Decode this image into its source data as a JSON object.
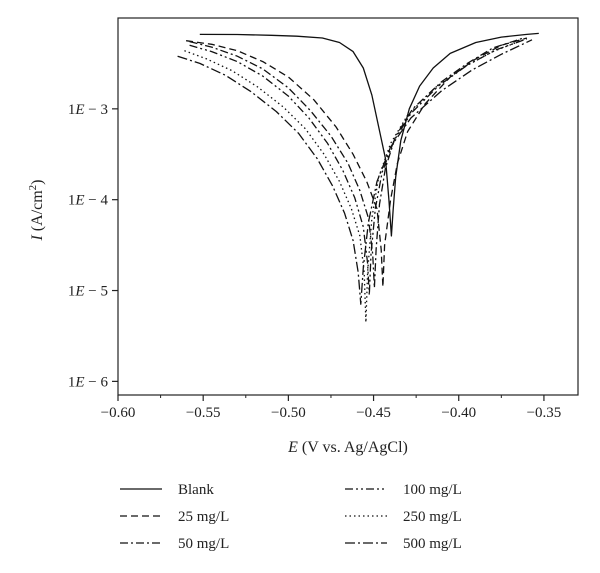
{
  "chart_data": {
    "type": "line",
    "title": "",
    "xlabel": "E (V vs. Ag/AgCl)",
    "ylabel": "I (A/cm2)",
    "xlim": [
      -0.6,
      -0.33
    ],
    "ylim_log10": [
      -6.15,
      -2.0
    ],
    "yscale": "log",
    "x_ticks": [
      -0.6,
      -0.55,
      -0.5,
      -0.45,
      -0.4,
      -0.35
    ],
    "x_tick_labels": [
      "−0.60",
      "−0.55",
      "−0.50",
      "−0.45",
      "−0.40",
      "−0.35"
    ],
    "y_ticks_log10": [
      -6,
      -5,
      -4,
      -3
    ],
    "y_tick_labels": [
      "1E − 6",
      "1E − 5",
      "1E − 4",
      "1E − 3"
    ],
    "grid": false,
    "legend_position": "bottom",
    "series": [
      {
        "name": "Blank",
        "dash": "",
        "points": [
          [
            -0.552,
            -2.18
          ],
          [
            -0.53,
            -2.182
          ],
          [
            -0.51,
            -2.19
          ],
          [
            -0.495,
            -2.2
          ],
          [
            -0.48,
            -2.22
          ],
          [
            -0.47,
            -2.27
          ],
          [
            -0.462,
            -2.37
          ],
          [
            -0.456,
            -2.55
          ],
          [
            -0.451,
            -2.85
          ],
          [
            -0.447,
            -3.2
          ],
          [
            -0.443,
            -3.55
          ],
          [
            -0.441,
            -4.0
          ],
          [
            -0.4395,
            -4.4
          ],
          [
            -0.4385,
            -4.12
          ],
          [
            -0.437,
            -3.75
          ],
          [
            -0.434,
            -3.35
          ],
          [
            -0.429,
            -3.0
          ],
          [
            -0.423,
            -2.75
          ],
          [
            -0.415,
            -2.55
          ],
          [
            -0.405,
            -2.39
          ],
          [
            -0.39,
            -2.27
          ],
          [
            -0.375,
            -2.21
          ],
          [
            -0.36,
            -2.18
          ],
          [
            -0.353,
            -2.17
          ]
        ]
      },
      {
        "name": "25 mg/L",
        "dash": "7,4",
        "points": [
          [
            -0.56,
            -2.25
          ],
          [
            -0.545,
            -2.29
          ],
          [
            -0.53,
            -2.36
          ],
          [
            -0.515,
            -2.48
          ],
          [
            -0.5,
            -2.65
          ],
          [
            -0.485,
            -2.9
          ],
          [
            -0.472,
            -3.2
          ],
          [
            -0.462,
            -3.5
          ],
          [
            -0.454,
            -3.8
          ],
          [
            -0.448,
            -4.1
          ],
          [
            -0.4455,
            -4.55
          ],
          [
            -0.4445,
            -4.96
          ],
          [
            -0.4435,
            -4.5
          ],
          [
            -0.44,
            -4.0
          ],
          [
            -0.436,
            -3.6
          ],
          [
            -0.43,
            -3.25
          ],
          [
            -0.42,
            -2.95
          ],
          [
            -0.405,
            -2.65
          ],
          [
            -0.39,
            -2.45
          ],
          [
            -0.375,
            -2.3
          ],
          [
            -0.36,
            -2.22
          ]
        ]
      },
      {
        "name": "50 mg/L",
        "dash": "8,3,2,3",
        "points": [
          [
            -0.558,
            -2.26
          ],
          [
            -0.545,
            -2.32
          ],
          [
            -0.53,
            -2.42
          ],
          [
            -0.515,
            -2.56
          ],
          [
            -0.5,
            -2.77
          ],
          [
            -0.487,
            -3.02
          ],
          [
            -0.475,
            -3.3
          ],
          [
            -0.465,
            -3.6
          ],
          [
            -0.458,
            -3.9
          ],
          [
            -0.453,
            -4.2
          ],
          [
            -0.4505,
            -4.6
          ],
          [
            -0.4495,
            -4.97
          ],
          [
            -0.4485,
            -4.55
          ],
          [
            -0.4465,
            -4.05
          ],
          [
            -0.443,
            -3.65
          ],
          [
            -0.437,
            -3.3
          ],
          [
            -0.427,
            -3.0
          ],
          [
            -0.41,
            -2.7
          ],
          [
            -0.395,
            -2.5
          ],
          [
            -0.38,
            -2.33
          ],
          [
            -0.362,
            -2.22
          ]
        ]
      },
      {
        "name": "100 mg/L",
        "dash": "8,3,2,3,2,3",
        "points": [
          [
            -0.558,
            -2.3
          ],
          [
            -0.545,
            -2.37
          ],
          [
            -0.53,
            -2.48
          ],
          [
            -0.515,
            -2.64
          ],
          [
            -0.5,
            -2.86
          ],
          [
            -0.488,
            -3.1
          ],
          [
            -0.477,
            -3.38
          ],
          [
            -0.468,
            -3.68
          ],
          [
            -0.461,
            -3.98
          ],
          [
            -0.456,
            -4.3
          ],
          [
            -0.4535,
            -4.7
          ],
          [
            -0.4525,
            -5.05
          ],
          [
            -0.4515,
            -4.6
          ],
          [
            -0.449,
            -4.1
          ],
          [
            -0.445,
            -3.7
          ],
          [
            -0.438,
            -3.35
          ],
          [
            -0.428,
            -3.05
          ],
          [
            -0.412,
            -2.75
          ],
          [
            -0.395,
            -2.52
          ],
          [
            -0.378,
            -2.35
          ],
          [
            -0.36,
            -2.23
          ]
        ]
      },
      {
        "name": "250 mg/L",
        "dash": "1.5,3",
        "points": [
          [
            -0.561,
            -2.36
          ],
          [
            -0.548,
            -2.45
          ],
          [
            -0.533,
            -2.58
          ],
          [
            -0.518,
            -2.76
          ],
          [
            -0.503,
            -2.98
          ],
          [
            -0.49,
            -3.22
          ],
          [
            -0.479,
            -3.5
          ],
          [
            -0.47,
            -3.8
          ],
          [
            -0.463,
            -4.1
          ],
          [
            -0.458,
            -4.4
          ],
          [
            -0.4555,
            -4.8
          ],
          [
            -0.4545,
            -5.35
          ],
          [
            -0.4535,
            -4.8
          ],
          [
            -0.451,
            -4.2
          ],
          [
            -0.447,
            -3.75
          ],
          [
            -0.44,
            -3.38
          ],
          [
            -0.43,
            -3.07
          ],
          [
            -0.414,
            -2.77
          ],
          [
            -0.397,
            -2.54
          ],
          [
            -0.38,
            -2.37
          ],
          [
            -0.362,
            -2.24
          ]
        ]
      },
      {
        "name": "500 mg/L",
        "dash": "10,3,2,3",
        "points": [
          [
            -0.565,
            -2.42
          ],
          [
            -0.552,
            -2.5
          ],
          [
            -0.537,
            -2.63
          ],
          [
            -0.522,
            -2.81
          ],
          [
            -0.507,
            -3.03
          ],
          [
            -0.494,
            -3.27
          ],
          [
            -0.483,
            -3.55
          ],
          [
            -0.474,
            -3.85
          ],
          [
            -0.467,
            -4.15
          ],
          [
            -0.462,
            -4.45
          ],
          [
            -0.459,
            -4.8
          ],
          [
            -0.4575,
            -5.15
          ],
          [
            -0.456,
            -4.75
          ],
          [
            -0.453,
            -4.25
          ],
          [
            -0.448,
            -3.8
          ],
          [
            -0.44,
            -3.42
          ],
          [
            -0.428,
            -3.1
          ],
          [
            -0.41,
            -2.8
          ],
          [
            -0.392,
            -2.57
          ],
          [
            -0.375,
            -2.4
          ],
          [
            -0.357,
            -2.24
          ]
        ]
      }
    ]
  }
}
